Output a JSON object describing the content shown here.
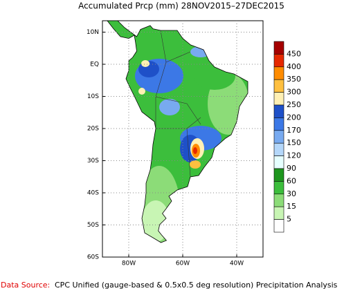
{
  "title": "Accumulated Prcp (mm) 28NOV2015–27DEC2015",
  "lat_labels": [
    "10N",
    "EQ",
    "10S",
    "20S",
    "30S",
    "40S",
    "50S",
    "60S"
  ],
  "lon_labels": [
    "80W",
    "60W",
    "40W"
  ],
  "colorbar": {
    "levels": [
      450,
      400,
      350,
      300,
      250,
      200,
      170,
      150,
      120,
      90,
      60,
      30,
      15,
      5
    ],
    "colors": [
      "#a50000",
      "#e62800",
      "#ff8c00",
      "#ffc040",
      "#fff0b4",
      "#1e50c8",
      "#3c78e6",
      "#78aaf0",
      "#b4d7fa",
      "#e6ffff",
      "#1e961e",
      "#3cbe3c",
      "#8cdc78",
      "#c8f5b4",
      "#ffffff"
    ]
  },
  "footer": {
    "source_label": "Data Source:",
    "source_text": "CPC Unified (gauge-based & 0.5x0.5 deg resolution) Precipitation Analysis"
  }
}
